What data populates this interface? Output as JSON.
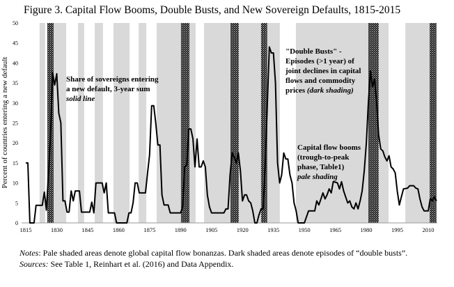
{
  "title": "Figure 3. Capital Flow Booms, Double Busts, and New Sovereign Defaults, 1815-2015",
  "notes": {
    "notes_label": "Notes",
    "notes_text": ": Pale shaded areas denote global capital flow bonanzas. Dark shaded areas denote episodes of “double busts”.",
    "sources_label": "Sources:",
    "sources_text": " See Table 1, Reinhart et al. (2016) and Data Appendix."
  },
  "chart_data": {
    "type": "line",
    "title": "Figure 3. Capital Flow Booms, Double Busts, and New Sovereign Defaults, 1815-2015",
    "ylabel": "Percent of countries entering a new default",
    "xlabel": "",
    "xlim": [
      1815,
      2014
    ],
    "ylim": [
      0,
      50
    ],
    "xticks": [
      1815,
      1830,
      1845,
      1860,
      1875,
      1890,
      1905,
      1920,
      1935,
      1950,
      1965,
      1980,
      1995,
      2010
    ],
    "yticks": [
      0,
      5,
      10,
      15,
      20,
      25,
      30,
      35,
      40,
      45,
      50
    ],
    "grid": false,
    "colors": {
      "line": "#000000",
      "pale": "#d9d9d9",
      "dark": "#1a1a1a"
    },
    "pale_shading": [
      [
        1821.7,
        1824.4
      ],
      [
        1828.5,
        1834.6
      ],
      [
        1840.3,
        1843.3
      ],
      [
        1848.4,
        1852.4
      ],
      [
        1857.5,
        1865.3
      ],
      [
        1869.7,
        1873.4
      ],
      [
        1878.4,
        1890.2
      ],
      [
        1894.3,
        1897.3
      ],
      [
        1901.4,
        1914.2
      ],
      [
        1918.2,
        1929
      ],
      [
        1932,
        1938.1
      ],
      [
        1945.9,
        1981
      ],
      [
        1986,
        1990.8
      ],
      [
        1998.9,
        2010.7
      ]
    ],
    "dark_shading": [
      [
        1825.4,
        1828.5
      ],
      [
        1890.2,
        1894.3
      ],
      [
        1914.2,
        1918.2
      ],
      [
        1929,
        1932
      ],
      [
        1981,
        1986
      ],
      [
        2010.7,
        2014
      ]
    ],
    "annotations": [
      {
        "lines": [
          "Share of sovereigns entering",
          "a new default, 3-year sum"
        ],
        "italic": "solid line"
      },
      {
        "lines": [
          "\"Double Busts\" -",
          "Episodes (>1 year) of",
          "joint declines in capital",
          " flows and commodity",
          "prices "
        ],
        "italic": "(dark shading)"
      },
      {
        "lines": [
          "Capital flow booms",
          "(trough-to-peak",
          "phase, Table1)"
        ],
        "italic": "pale shading"
      }
    ],
    "series": [
      {
        "x": [
          1815,
          1816,
          1817,
          1818,
          1819,
          1820,
          1821,
          1822,
          1823,
          1824,
          1825,
          1826,
          1827,
          1828,
          1829,
          1830,
          1831,
          1832,
          1833,
          1834,
          1835,
          1836,
          1837,
          1838,
          1839,
          1840,
          1841,
          1842,
          1843,
          1844,
          1845,
          1846,
          1847,
          1848,
          1849,
          1850,
          1851,
          1852,
          1853,
          1854,
          1855,
          1856,
          1857,
          1858,
          1859,
          1860,
          1861,
          1862,
          1863,
          1864,
          1865,
          1866,
          1867,
          1868,
          1869,
          1870,
          1871,
          1872,
          1873,
          1874,
          1875,
          1876,
          1877,
          1878,
          1879,
          1880,
          1881,
          1882,
          1883,
          1884,
          1885,
          1886,
          1887,
          1888,
          1889,
          1890,
          1891,
          1892,
          1893,
          1894,
          1895,
          1896,
          1897,
          1898,
          1899,
          1900,
          1901,
          1902,
          1903,
          1904,
          1905,
          1906,
          1907,
          1908,
          1909,
          1910,
          1911,
          1912,
          1913,
          1914,
          1915,
          1916,
          1917,
          1918,
          1919,
          1920,
          1921,
          1922,
          1923,
          1924,
          1925,
          1926,
          1927,
          1928,
          1929,
          1930,
          1931,
          1932,
          1933,
          1934,
          1935,
          1936,
          1937,
          1938,
          1939,
          1940,
          1941,
          1942,
          1943,
          1944,
          1945,
          1946,
          1947,
          1948,
          1949,
          1950,
          1951,
          1952,
          1953,
          1954,
          1955,
          1956,
          1957,
          1958,
          1959,
          1960,
          1961,
          1962,
          1963,
          1964,
          1965,
          1966,
          1967,
          1968,
          1969,
          1970,
          1971,
          1972,
          1973,
          1974,
          1975,
          1976,
          1977,
          1978,
          1979,
          1980,
          1981,
          1982,
          1983,
          1984,
          1985,
          1986,
          1987,
          1988,
          1989,
          1990,
          1991,
          1992,
          1993,
          1994,
          1995,
          1996,
          1997,
          1998,
          1999,
          2000,
          2001,
          2002,
          2003,
          2004,
          2005,
          2006,
          2007,
          2008,
          2009,
          2010,
          2011,
          2012,
          2013,
          2014
        ],
        "y": [
          15,
          15,
          0,
          0,
          0,
          4.4,
          4.4,
          4.4,
          4.4,
          7.7,
          3.2,
          12,
          22,
          37.7,
          34.5,
          37.3,
          27.5,
          25,
          5.5,
          5.5,
          2.7,
          2.7,
          8,
          5.5,
          8,
          8,
          8,
          2.7,
          2.7,
          2.7,
          2.7,
          2.7,
          5.2,
          2.5,
          10,
          10,
          10,
          10,
          7.5,
          10,
          2.5,
          2.5,
          2.5,
          2.5,
          0,
          0,
          0,
          0,
          0,
          0,
          2.5,
          2.5,
          5,
          10,
          10,
          7.5,
          7.5,
          7.5,
          7.5,
          12.5,
          17,
          29.3,
          29.3,
          25,
          19.5,
          19.5,
          7,
          4.5,
          4.5,
          4.5,
          2.5,
          2.5,
          2.5,
          2.5,
          2.5,
          2.5,
          4,
          14,
          14.5,
          23.5,
          23.5,
          21,
          14,
          21,
          14,
          14,
          15.5,
          14,
          7,
          4,
          2.5,
          2.5,
          2.5,
          2.5,
          2.5,
          2.5,
          2.5,
          3.5,
          3.5,
          12,
          17.5,
          16.5,
          15,
          17.5,
          13,
          5.5,
          7,
          7,
          5.5,
          5,
          3,
          0,
          0,
          2,
          3.5,
          3.5,
          14,
          29,
          44,
          42.5,
          42.5,
          35,
          15,
          10,
          12,
          17.5,
          16,
          16,
          12,
          10,
          5,
          3,
          0,
          0,
          0,
          0,
          1.5,
          3,
          3,
          3,
          3,
          5.5,
          4.5,
          6,
          7.5,
          6,
          7,
          8.5,
          7.5,
          10.3,
          10.2,
          10,
          8.5,
          10.3,
          8,
          6.5,
          5,
          5.5,
          4,
          3.5,
          5,
          3.5,
          5.5,
          8,
          13,
          20,
          30,
          38,
          34,
          36,
          30,
          22,
          18.5,
          18,
          16.5,
          15.5,
          16.8,
          14,
          13.5,
          12.5,
          8,
          4.5,
          6.5,
          8.5,
          8.6,
          8.7,
          9.3,
          9.3,
          9.3,
          8.7,
          8.5,
          6,
          4,
          3,
          3,
          3,
          6,
          5.5,
          6.5,
          5.5
        ]
      }
    ]
  }
}
